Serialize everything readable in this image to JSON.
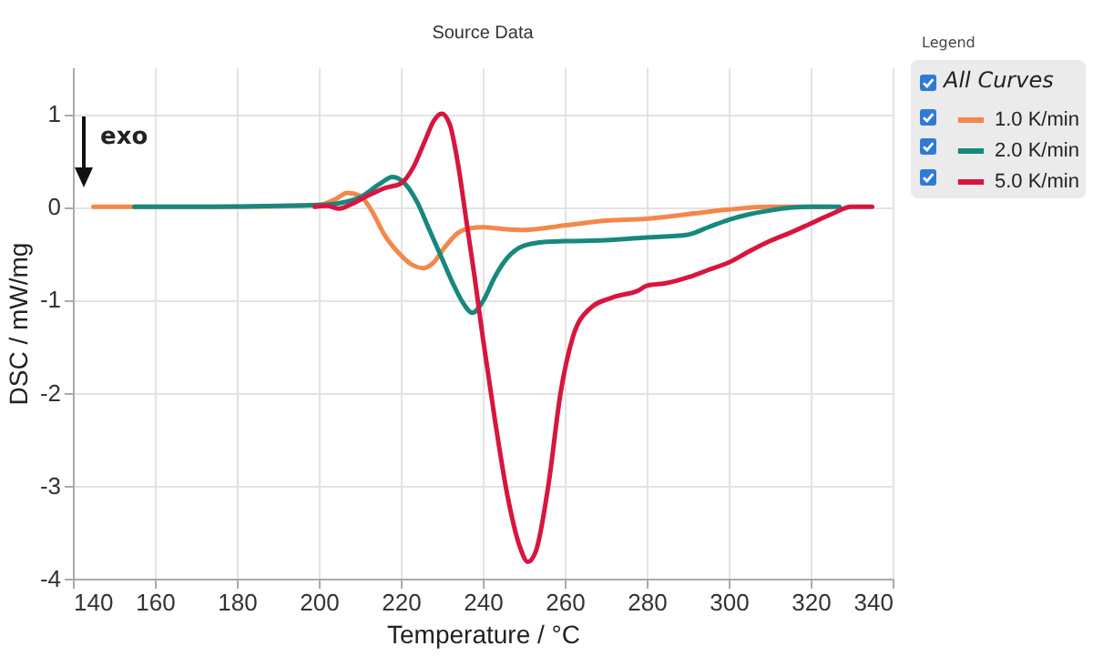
{
  "chart_data": {
    "type": "line",
    "title": "Source Data",
    "xlabel": "Temperature / °C",
    "ylabel": "DSC / mW/mg",
    "legend_title": "Legend",
    "annotations": [
      "exo",
      "All Curves"
    ],
    "xlim": [
      140,
      340
    ],
    "xticks": [
      140,
      160,
      180,
      200,
      220,
      240,
      260,
      280,
      300,
      320,
      340
    ],
    "ylim": [
      -4,
      1.5
    ],
    "yticks": [
      -4,
      -3,
      -2,
      -1,
      0,
      1
    ],
    "grid": true,
    "legend": "right",
    "line_style": "solid",
    "series": [
      {
        "name": "1.0 K/min",
        "color": "#f4874b",
        "x": [
          145,
          160,
          180,
          200,
          204,
          207,
          210,
          213,
          216,
          220,
          223,
          225.5,
          228,
          231,
          234,
          237,
          240,
          245,
          250,
          260,
          270,
          280,
          290,
          300,
          310,
          320,
          325
        ],
        "values": [
          0,
          0,
          0,
          0.02,
          0.08,
          0.15,
          0.12,
          -0.05,
          -0.3,
          -0.52,
          -0.63,
          -0.66,
          -0.6,
          -0.42,
          -0.28,
          -0.23,
          -0.22,
          -0.24,
          -0.25,
          -0.2,
          -0.15,
          -0.13,
          -0.08,
          -0.03,
          0,
          0,
          0
        ]
      },
      {
        "name": "2.0 K/min",
        "color": "#17887e",
        "x": [
          155,
          170,
          190,
          200,
          205,
          210,
          215,
          218,
          221,
          224,
          227,
          230,
          233,
          235,
          237.5,
          240,
          243,
          246,
          250,
          255,
          260,
          270,
          280,
          290,
          295,
          300,
          305,
          310,
          315,
          320,
          327
        ],
        "values": [
          0,
          0,
          0.01,
          0.02,
          0.04,
          0.1,
          0.25,
          0.32,
          0.25,
          0.05,
          -0.25,
          -0.55,
          -0.85,
          -1.02,
          -1.14,
          -1.02,
          -0.75,
          -0.55,
          -0.42,
          -0.38,
          -0.37,
          -0.36,
          -0.33,
          -0.3,
          -0.22,
          -0.14,
          -0.08,
          -0.04,
          -0.01,
          0,
          0
        ]
      },
      {
        "name": "5.0 K/min",
        "color": "#d7163f",
        "x": [
          199,
          202,
          205,
          208,
          212,
          216,
          220,
          223,
          226,
          228,
          230,
          232,
          234,
          236,
          238,
          240,
          243,
          246,
          249,
          251,
          253,
          256,
          259,
          262,
          266,
          272,
          278,
          280,
          285,
          290,
          295,
          300,
          305,
          310,
          315,
          320,
          325,
          330,
          335
        ],
        "values": [
          0,
          0.01,
          -0.02,
          0.03,
          0.12,
          0.2,
          0.25,
          0.42,
          0.72,
          0.92,
          1.0,
          0.88,
          0.45,
          -0.15,
          -0.75,
          -1.4,
          -2.3,
          -3.1,
          -3.65,
          -3.82,
          -3.7,
          -3.0,
          -2.0,
          -1.4,
          -1.1,
          -0.97,
          -0.9,
          -0.85,
          -0.82,
          -0.76,
          -0.68,
          -0.6,
          -0.48,
          -0.37,
          -0.28,
          -0.18,
          -0.08,
          0,
          0
        ]
      }
    ]
  }
}
